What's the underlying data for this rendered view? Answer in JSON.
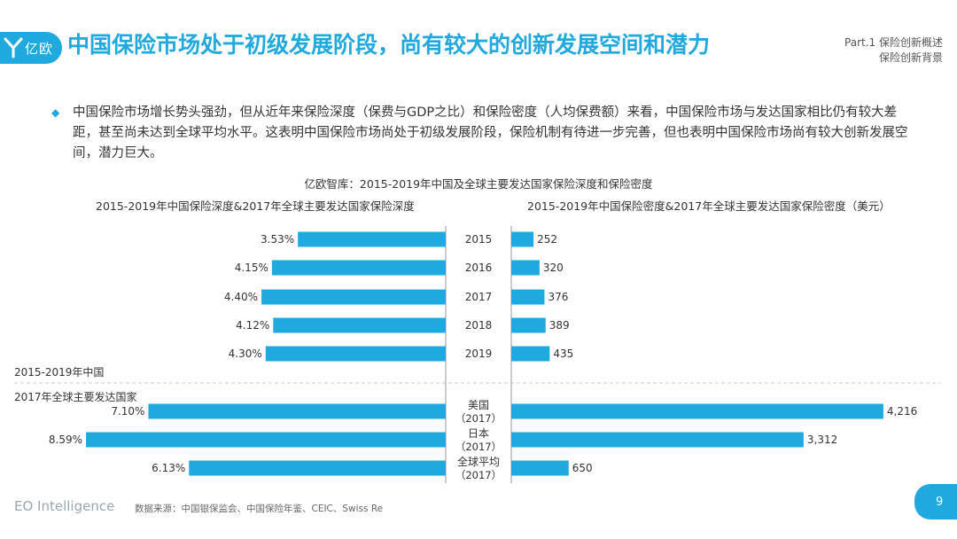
{
  "brand": {
    "logo_text": "亿欧",
    "footer_name": "EO Intelligence"
  },
  "header": {
    "title": "中国保险市场处于初级发展阶段，尚有较大的创新发展空间和潜力",
    "part_line1": "Part.1 保险创新概述",
    "part_line2": "保险创新背景"
  },
  "body": {
    "paragraph": "中国保险市场增长势头强劲，但从近年来保险深度（保费与GDP之比）和保险密度（人均保费额）来看，中国保险市场与发达国家相比仍有较大差距，甚至尚未达到全球平均水平。这表明中国保险市场尚处于初级发展阶段，保险机制有待进一步完善，但也表明中国保险市场尚有较大创新发展空间，潜力巨大。"
  },
  "footer": {
    "source": "数据来源：中国银保监会、中国保险年鉴、CEIC、Swiss Re",
    "page_number": "9"
  },
  "colors": {
    "accent": "#1fa9df"
  },
  "chart_data": {
    "type": "bar",
    "title": "亿欧智库：2015-2019年中国及全球主要发达国家保险深度和保险密度",
    "left_panel_title": "2015-2019年中国保险深度&2017年全球主要发达国家保险深度",
    "right_panel_title": "2015-2019年中国保险密度&2017年全球主要发达国家保险密度（美元）",
    "group_labels": [
      "2015-2019年中国",
      "2017年全球主要发达国家"
    ],
    "categories": [
      "2015",
      "2016",
      "2017",
      "2018",
      "2019",
      "美国\n（2017）",
      "日本\n（2017）",
      "全球平均\n（2017）"
    ],
    "series": [
      {
        "key": "depth",
        "values": [
          3.53,
          4.15,
          4.4,
          4.12,
          4.3,
          7.1,
          8.59,
          6.13
        ],
        "labels": [
          "3.53%",
          "4.15%",
          "4.40%",
          "4.12%",
          "4.30%",
          "7.10%",
          "8.59%",
          "6.13%"
        ]
      },
      {
        "key": "density",
        "values": [
          252,
          320,
          376,
          389,
          435,
          4216,
          3312,
          650
        ],
        "labels": [
          "252",
          "320",
          "376",
          "389",
          "435",
          "4,216",
          "3,312",
          "650"
        ]
      }
    ]
  }
}
